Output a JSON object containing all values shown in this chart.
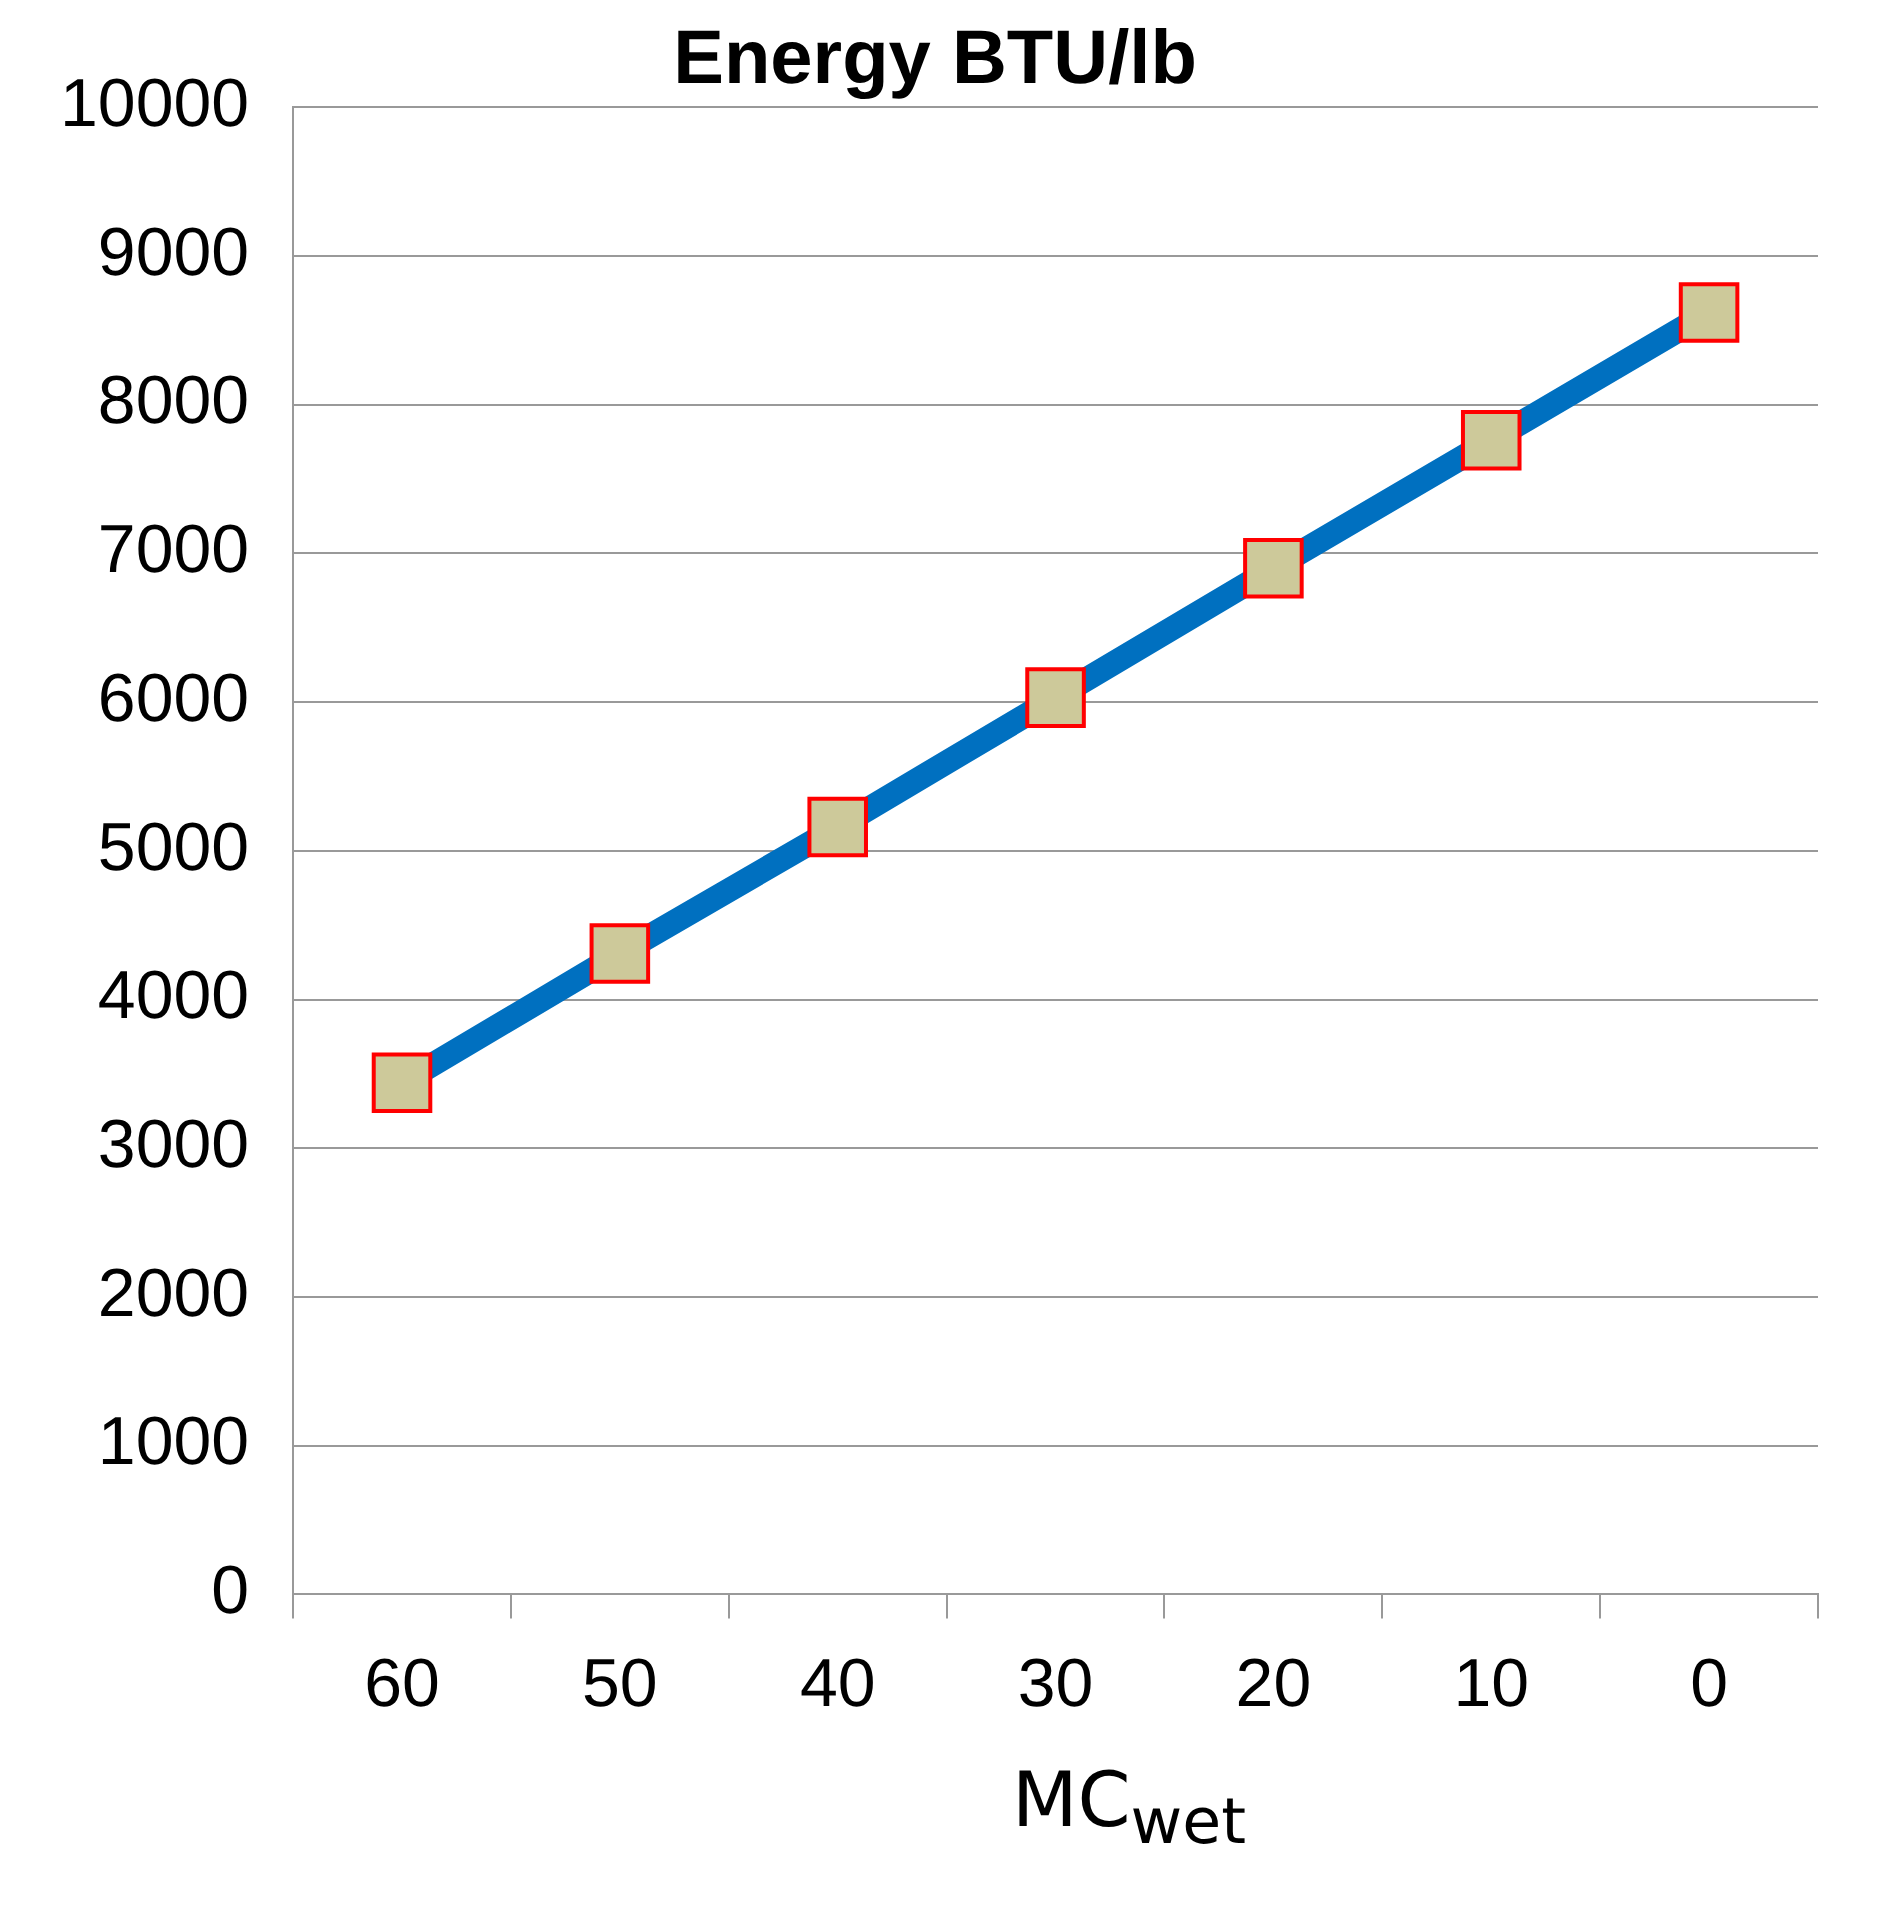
{
  "chart_data": {
    "type": "line",
    "title": "Energy BTU/lb",
    "xlabel": "MC$_{wet}$",
    "categories": [
      "60",
      "50",
      "40",
      "30",
      "20",
      "10",
      "0"
    ],
    "series": [
      {
        "color": "#0070c0",
        "values": [
          3440,
          4310,
          5160,
          6030,
          6900,
          7760,
          8620
        ]
      }
    ],
    "ylim": [
      0,
      10000
    ],
    "yticks": [
      0,
      1000,
      2000,
      3000,
      4000,
      5000,
      6000,
      7000,
      8000,
      9000,
      10000
    ],
    "grid": "y",
    "legend": false,
    "marker": "square",
    "line_style": "solid"
  }
}
